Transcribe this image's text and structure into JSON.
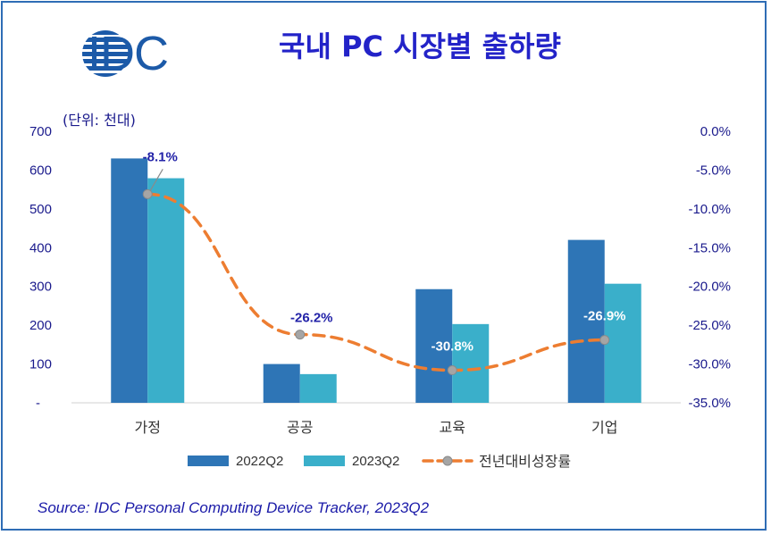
{
  "brand": {
    "logo_text": "IDC"
  },
  "header": {
    "title": "국내 PC 시장별 출하량"
  },
  "unit_label": "(단위: 천대)",
  "source": "Source: IDC Personal Computing Device Tracker, 2023Q2",
  "colors": {
    "series_2022": "#2e75b6",
    "series_2023": "#3aafca",
    "growth_line": "#ed7d31",
    "marker": "#a5a5a5",
    "label_dark": "#2323a8",
    "label_light": "#ffffff"
  },
  "chart_data": {
    "type": "bar",
    "categories": [
      "가정",
      "공공",
      "교육",
      "기업"
    ],
    "series": [
      {
        "name": "2022Q2",
        "axis": "left",
        "values": [
          630,
          100,
          293,
          420
        ]
      },
      {
        "name": "2023Q2",
        "axis": "left",
        "values": [
          579,
          74,
          203,
          307
        ]
      }
    ],
    "line_series": {
      "name": "전년대비성장률",
      "axis": "right",
      "type": "line",
      "style": "dashed",
      "values": [
        -8.1,
        -26.2,
        -30.8,
        -26.9
      ],
      "labels": [
        "-8.1%",
        "-26.2%",
        "-30.8%",
        "-26.9%"
      ]
    },
    "y_left": {
      "range": [
        0,
        700
      ],
      "ticks": [
        "-",
        "100",
        "200",
        "300",
        "400",
        "500",
        "600",
        "700"
      ]
    },
    "y_right": {
      "range": [
        -35,
        0
      ],
      "ticks": [
        "-35.0%",
        "-30.0%",
        "-25.0%",
        "-20.0%",
        "-15.0%",
        "-10.0%",
        "-5.0%",
        "0.0%"
      ]
    },
    "grid": false,
    "legend_position": "bottom"
  }
}
